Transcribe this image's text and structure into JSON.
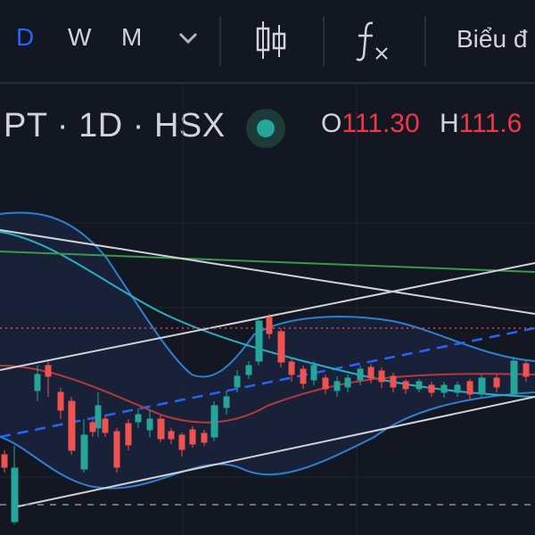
{
  "toolbar": {
    "timeframes": [
      {
        "label": "D",
        "active": true
      },
      {
        "label": "W",
        "active": false
      },
      {
        "label": "M",
        "active": false
      }
    ],
    "dropdown_icon": "chevron-down-icon",
    "candles_icon": "candlestick-icon",
    "indicator_icon": "function-icon",
    "chart_label": "Biểu đ"
  },
  "legend": {
    "symbol": "PT · 1D · HSX",
    "status_color": "#26a69a",
    "open_label": "O",
    "open_value": "111.30",
    "high_label": "H",
    "high_value": "111.6"
  },
  "colors": {
    "up": "#26a69a",
    "down": "#ef5350",
    "band": "#2f7fd1",
    "ma": "#b33a3a",
    "accent": "#2962ff"
  }
}
